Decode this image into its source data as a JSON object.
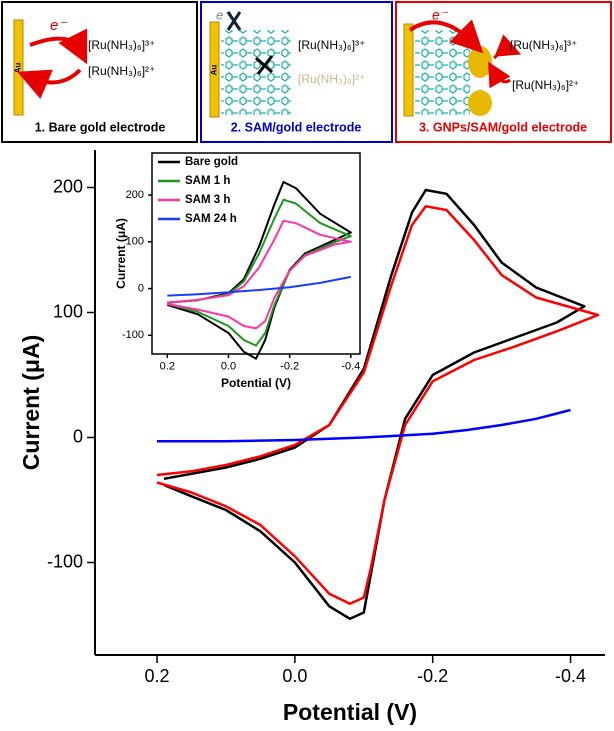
{
  "panels": [
    {
      "label": "1. Bare gold electrode",
      "electrode": "Au",
      "electron": "e⁻",
      "species": [
        "[Ru(NH₃)₆]³⁺",
        "[Ru(NH₃)₆]²⁺"
      ]
    },
    {
      "label": "2. SAM/gold electrode",
      "electrode": "Au",
      "electron": "e⁻",
      "species": [
        "[Ru(NH₃)₆]³⁺",
        "[Ru(NH₃)₆]²⁺"
      ]
    },
    {
      "label": "3. GNPs/SAM/gold electrode",
      "electrode": "Au",
      "electron": "e⁻",
      "species": [
        "[Ru(NH₃)₆]³⁺",
        "[Ru(NH₃)₆]²⁺"
      ]
    }
  ],
  "chart_data": [
    {
      "type": "line",
      "xlabel": "Potential (V)",
      "ylabel": "Current (μA)",
      "xlim": [
        0.29,
        -0.45
      ],
      "ylim": [
        -174,
        230
      ],
      "xticks": [
        0.2,
        {
          "value": 0,
          "label": "0.0"
        },
        -0.2,
        -0.4
      ],
      "yticks": [
        200,
        100,
        0,
        -100
      ],
      "series": [
        {
          "color": "#000000",
          "x": [
            0.19,
            0.15,
            0.1,
            0.05,
            0.0,
            -0.05,
            -0.1,
            -0.14,
            -0.17,
            -0.19,
            -0.22,
            -0.26,
            -0.3,
            -0.35,
            -0.42,
            -0.38,
            -0.32,
            -0.26,
            -0.2,
            -0.16,
            -0.13,
            -0.11,
            -0.1,
            -0.08,
            -0.05,
            0.0,
            0.05,
            0.1,
            0.15,
            0.19
          ],
          "values": [
            -33,
            -29,
            -24,
            -17,
            -8,
            10,
            55,
            130,
            180,
            198,
            195,
            170,
            140,
            120,
            105,
            92,
            80,
            68,
            50,
            15,
            -50,
            -110,
            -140,
            -145,
            -135,
            -100,
            -75,
            -58,
            -47,
            -38
          ]
        },
        {
          "color": "#ff0000",
          "x": [
            0.2,
            0.15,
            0.1,
            0.05,
            0.0,
            -0.05,
            -0.1,
            -0.14,
            -0.17,
            -0.19,
            -0.22,
            -0.26,
            -0.3,
            -0.35,
            -0.44,
            -0.38,
            -0.32,
            -0.26,
            -0.2,
            -0.16,
            -0.13,
            -0.11,
            -0.1,
            -0.08,
            -0.05,
            0.0,
            0.05,
            0.1,
            0.15,
            0.2
          ],
          "values": [
            -30,
            -27,
            -22,
            -15,
            -6,
            10,
            52,
            122,
            170,
            185,
            182,
            158,
            130,
            112,
            98,
            85,
            73,
            62,
            45,
            10,
            -50,
            -105,
            -128,
            -133,
            -125,
            -95,
            -70,
            -55,
            -44,
            -36
          ]
        },
        {
          "color": "#0000ff",
          "x": [
            0.2,
            0.1,
            0.0,
            -0.1,
            -0.2,
            -0.25,
            -0.3,
            -0.35,
            -0.4
          ],
          "values": [
            -3,
            -3,
            -2,
            0,
            3,
            6,
            10,
            15,
            22
          ]
        }
      ]
    },
    {
      "type": "line",
      "xlabel": "Potential (V)",
      "ylabel": "Current (μA)",
      "xlim": [
        0.25,
        -0.43
      ],
      "ylim": [
        -140,
        290
      ],
      "xticks": [
        0.2,
        {
          "value": 0,
          "label": "0.0"
        },
        -0.2,
        -0.4
      ],
      "yticks": [
        200,
        100,
        0,
        -100
      ],
      "legend": "upper left",
      "series": [
        {
          "name": "Bare gold",
          "color": "#000000",
          "x": [
            0.2,
            0.1,
            0.0,
            -0.05,
            -0.1,
            -0.15,
            -0.18,
            -0.22,
            -0.3,
            -0.4,
            -0.35,
            -0.25,
            -0.2,
            -0.15,
            -0.12,
            -0.09,
            -0.05,
            0.0,
            0.1,
            0.2
          ],
          "values": [
            -30,
            -25,
            -10,
            20,
            90,
            180,
            228,
            215,
            160,
            120,
            105,
            75,
            40,
            -40,
            -110,
            -150,
            -135,
            -95,
            -55,
            -35
          ]
        },
        {
          "name": "SAM 1 h",
          "color": "#1a9a1a",
          "x": [
            0.2,
            0.1,
            0.0,
            -0.05,
            -0.1,
            -0.15,
            -0.18,
            -0.22,
            -0.3,
            -0.4,
            -0.35,
            -0.25,
            -0.2,
            -0.15,
            -0.12,
            -0.09,
            -0.05,
            0.0,
            0.1,
            0.2
          ],
          "values": [
            -30,
            -25,
            -12,
            15,
            75,
            150,
            190,
            182,
            140,
            112,
            100,
            72,
            38,
            -35,
            -95,
            -122,
            -110,
            -80,
            -50,
            -33
          ]
        },
        {
          "name": "SAM 3 h",
          "color": "#ff33aa",
          "x": [
            0.2,
            0.1,
            0.0,
            -0.05,
            -0.1,
            -0.15,
            -0.18,
            -0.22,
            -0.3,
            -0.4,
            -0.35,
            -0.25,
            -0.2,
            -0.15,
            -0.12,
            -0.09,
            -0.05,
            0.0,
            0.1,
            0.2
          ],
          "values": [
            -30,
            -24,
            -14,
            5,
            45,
            105,
            145,
            140,
            115,
            100,
            95,
            70,
            38,
            -20,
            -70,
            -85,
            -80,
            -60,
            -45,
            -33
          ]
        },
        {
          "name": "SAM 24 h",
          "color": "#1a3cff",
          "x": [
            0.2,
            0.1,
            0.0,
            -0.1,
            -0.2,
            -0.3,
            -0.4
          ],
          "values": [
            -15,
            -12,
            -8,
            -3,
            3,
            12,
            25
          ]
        }
      ]
    }
  ]
}
